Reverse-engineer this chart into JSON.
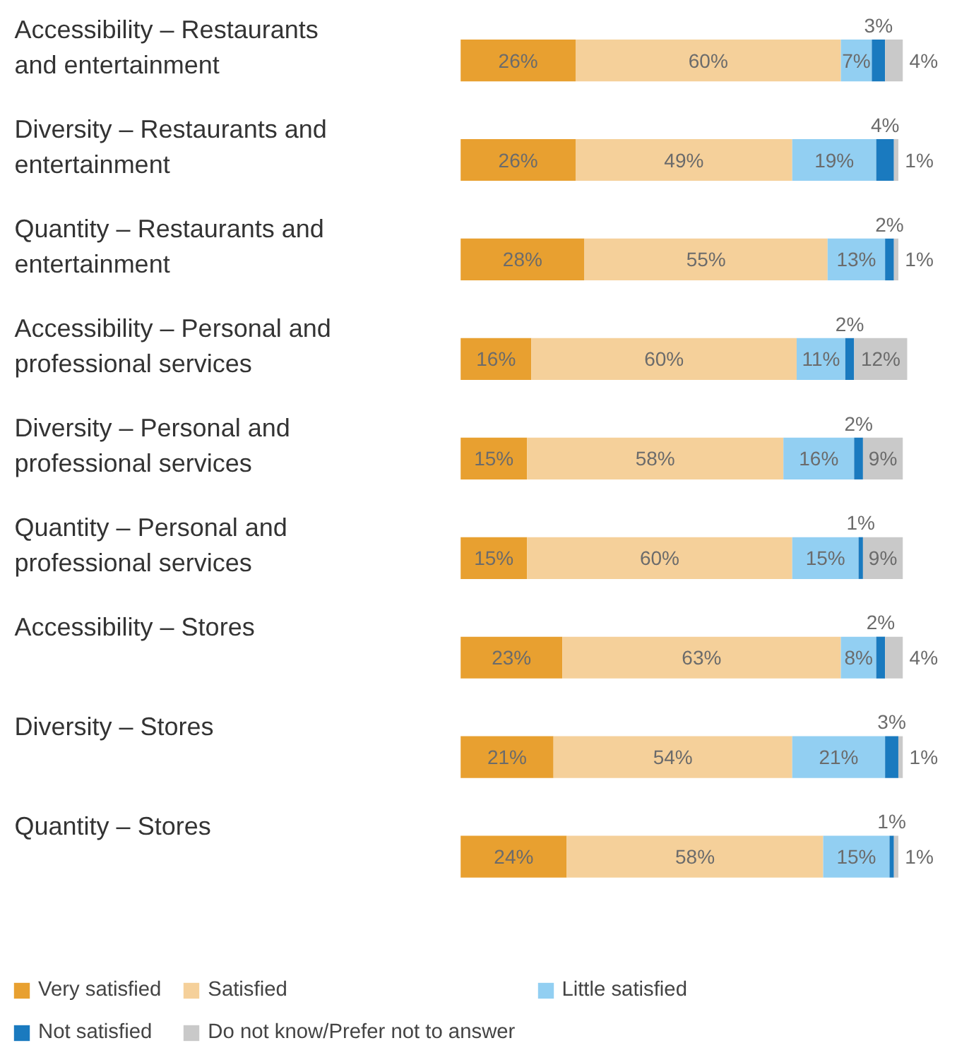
{
  "chart_data": {
    "type": "bar",
    "orientation": "horizontal",
    "stacked": true,
    "categories": [
      "Accessibility – Restaurants and entertainment",
      "Diversity – Restaurants and entertainment",
      "Quantity – Restaurants and entertainment",
      "Accessibility – Personal and professional services",
      "Diversity – Personal and professional services",
      "Quantity – Personal and professional services",
      "Accessibility – Stores",
      "Diversity – Stores",
      "Quantity – Stores"
    ],
    "series": [
      {
        "name": "Very satisfied",
        "color": "#e8a030",
        "values": [
          26,
          26,
          28,
          16,
          15,
          15,
          23,
          21,
          24
        ],
        "value_labels": [
          "26%",
          "26%",
          "28%",
          "16%",
          "15%",
          "15%",
          "23%",
          "21%",
          "24%"
        ]
      },
      {
        "name": "Satisfied",
        "color": "#f5d09a",
        "values": [
          60,
          49,
          55,
          60,
          58,
          60,
          63,
          54,
          58
        ],
        "value_labels": [
          "60%",
          "49%",
          "55%",
          "60%",
          "58%",
          "60%",
          "63%",
          "54%",
          "58%"
        ]
      },
      {
        "name": "Little satisfied",
        "color": "#92cff2",
        "values": [
          7,
          19,
          13,
          11,
          16,
          15,
          8,
          21,
          15
        ],
        "value_labels": [
          "7%",
          "19%",
          "13%",
          "11%",
          "16%",
          "15%",
          "8%",
          "21%",
          "15%"
        ]
      },
      {
        "name": "Not satisfied",
        "color": "#1a7abf",
        "values": [
          3,
          4,
          2,
          2,
          2,
          1,
          2,
          3,
          1
        ],
        "value_labels": [
          "3%",
          "4%",
          "2%",
          "2%",
          "2%",
          "1%",
          "2%",
          "3%",
          "1%"
        ]
      },
      {
        "name": "Do not know/Prefer not to answer",
        "color": "#c9c9c9",
        "values": [
          4,
          1,
          1,
          12,
          9,
          9,
          4,
          1,
          1
        ],
        "value_labels": [
          "4%",
          "1%",
          "1%",
          "12%",
          "9%",
          "9%",
          "4%",
          "1%",
          "1%"
        ]
      }
    ],
    "tick_labels": "y",
    "legend": "bottom"
  }
}
